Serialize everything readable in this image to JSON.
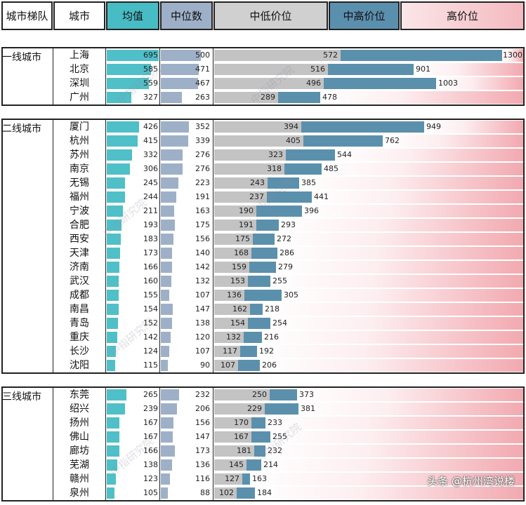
{
  "headers": {
    "tier": "城市梯队",
    "city": "城市",
    "avg": "均值",
    "median": "中位数",
    "low_mid": "中低价位",
    "high_mid": "中高价位",
    "high": "高价位"
  },
  "watermark": "中指研究院",
  "credit": "头条 @杭州湾说楼",
  "colors": {
    "avg": "#4fbfc8",
    "median": "#9eb0c8",
    "low_mid": "#c3c3c3",
    "high_mid": "#5b90ad",
    "high": "#f2a9b0"
  },
  "chart_data": {
    "type": "table",
    "columns": [
      "城市梯队",
      "城市",
      "均值",
      "中位数",
      "中低价位",
      "中高价位",
      "高价位"
    ],
    "groups": [
      {
        "tier": "一线城市",
        "rows": [
          {
            "city": "上海",
            "avg": 695,
            "median": 500,
            "low_mid": 572,
            "high_mid": 1300
          },
          {
            "city": "北京",
            "avg": 585,
            "median": 471,
            "low_mid": 516,
            "high_mid": 901
          },
          {
            "city": "深圳",
            "avg": 559,
            "median": 467,
            "low_mid": 496,
            "high_mid": 1003
          },
          {
            "city": "广州",
            "avg": 327,
            "median": 263,
            "low_mid": 289,
            "high_mid": 478
          }
        ]
      },
      {
        "tier": "二线城市",
        "rows": [
          {
            "city": "厦门",
            "avg": 426,
            "median": 352,
            "low_mid": 394,
            "high_mid": 949
          },
          {
            "city": "杭州",
            "avg": 415,
            "median": 339,
            "low_mid": 405,
            "high_mid": 762
          },
          {
            "city": "苏州",
            "avg": 332,
            "median": 276,
            "low_mid": 323,
            "high_mid": 544
          },
          {
            "city": "南京",
            "avg": 306,
            "median": 276,
            "low_mid": 318,
            "high_mid": 485
          },
          {
            "city": "无锡",
            "avg": 245,
            "median": 223,
            "low_mid": 243,
            "high_mid": 385
          },
          {
            "city": "福州",
            "avg": 244,
            "median": 191,
            "low_mid": 237,
            "high_mid": 441
          },
          {
            "city": "宁波",
            "avg": 211,
            "median": 163,
            "low_mid": 190,
            "high_mid": 396
          },
          {
            "city": "合肥",
            "avg": 193,
            "median": 175,
            "low_mid": 191,
            "high_mid": 293
          },
          {
            "city": "西安",
            "avg": 183,
            "median": 156,
            "low_mid": 175,
            "high_mid": 272
          },
          {
            "city": "天津",
            "avg": 173,
            "median": 140,
            "low_mid": 168,
            "high_mid": 286
          },
          {
            "city": "济南",
            "avg": 166,
            "median": 142,
            "low_mid": 159,
            "high_mid": 279
          },
          {
            "city": "武汉",
            "avg": 160,
            "median": 132,
            "low_mid": 153,
            "high_mid": 255
          },
          {
            "city": "成都",
            "avg": 155,
            "median": 107,
            "low_mid": 136,
            "high_mid": 305
          },
          {
            "city": "南昌",
            "avg": 154,
            "median": 147,
            "low_mid": 162,
            "high_mid": 218
          },
          {
            "city": "青岛",
            "avg": 152,
            "median": 138,
            "low_mid": 154,
            "high_mid": 254
          },
          {
            "city": "重庆",
            "avg": 142,
            "median": 120,
            "low_mid": 132,
            "high_mid": 216
          },
          {
            "city": "长沙",
            "avg": 124,
            "median": 107,
            "low_mid": 117,
            "high_mid": 192
          },
          {
            "city": "沈阳",
            "avg": 115,
            "median": 90,
            "low_mid": 107,
            "high_mid": 206
          }
        ]
      },
      {
        "tier": "三线城市",
        "rows": [
          {
            "city": "东莞",
            "avg": 265,
            "median": 232,
            "low_mid": 250,
            "high_mid": 373
          },
          {
            "city": "绍兴",
            "avg": 239,
            "median": 206,
            "low_mid": 229,
            "high_mid": 381
          },
          {
            "city": "扬州",
            "avg": 167,
            "median": 156,
            "low_mid": 170,
            "high_mid": 233
          },
          {
            "city": "佛山",
            "avg": 167,
            "median": 147,
            "low_mid": 167,
            "high_mid": 255
          },
          {
            "city": "廊坊",
            "avg": 166,
            "median": 173,
            "low_mid": 181,
            "high_mid": 232
          },
          {
            "city": "芜湖",
            "avg": 138,
            "median": 136,
            "low_mid": 145,
            "high_mid": 214
          },
          {
            "city": "赣州",
            "avg": 123,
            "median": 116,
            "low_mid": 127,
            "high_mid": 163
          },
          {
            "city": "泉州",
            "avg": 105,
            "median": 88,
            "low_mid": 102,
            "high_mid": 184
          }
        ]
      }
    ]
  }
}
